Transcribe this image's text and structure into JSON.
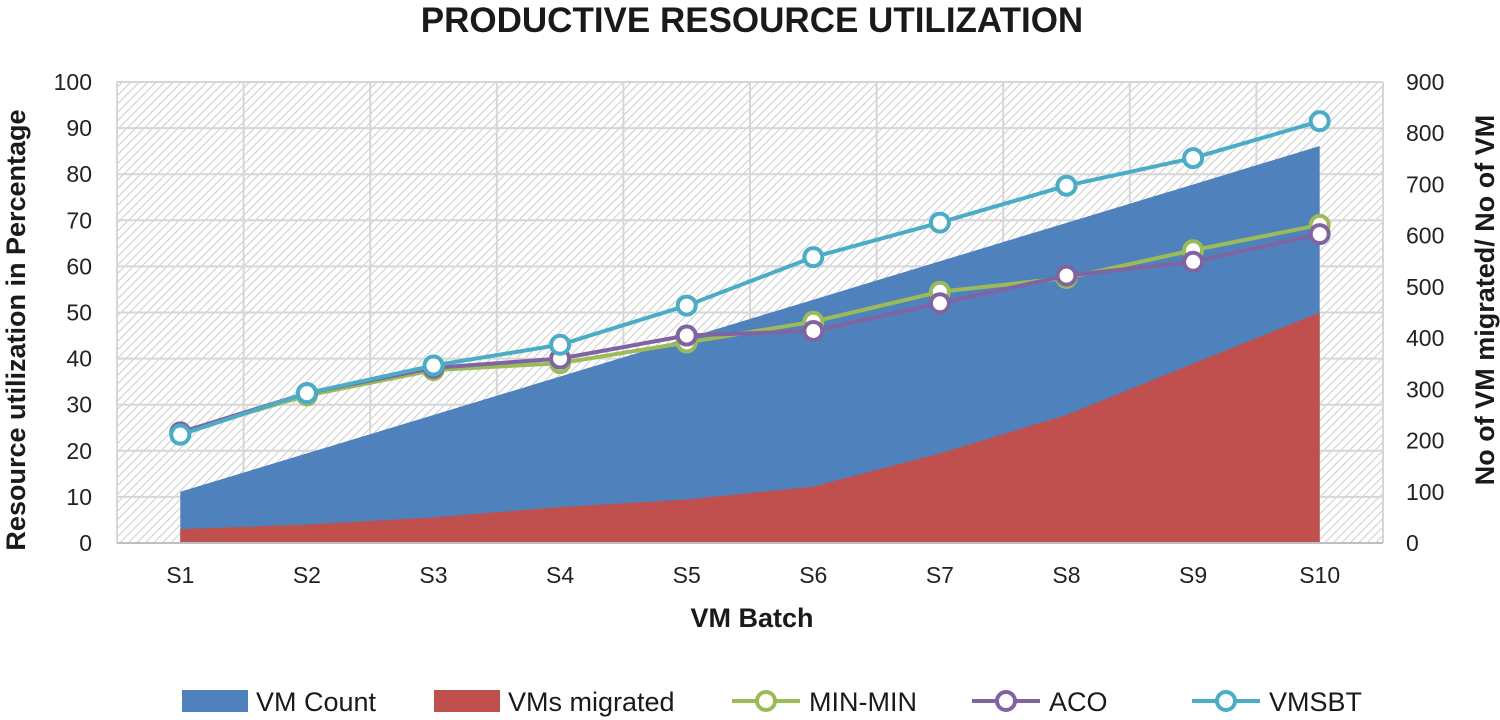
{
  "chart_data": {
    "type": "area+line",
    "title": "PRODUCTIVE RESOURCE UTILIZATION",
    "xlabel": "VM Batch",
    "ylabel_left": "Resource utilization in Percentage",
    "ylabel_right": "No of VM migrated/ No of VM",
    "categories": [
      "S1",
      "S2",
      "S3",
      "S4",
      "S5",
      "S6",
      "S7",
      "S8",
      "S9",
      "S10"
    ],
    "ylim_left": [
      0,
      100
    ],
    "yticks_left": [
      "0",
      "10",
      "20",
      "30",
      "40",
      "50",
      "60",
      "70",
      "80",
      "90",
      "100"
    ],
    "ylim_right": [
      0,
      900
    ],
    "yticks_right": [
      "0",
      "100",
      "200",
      "300",
      "400",
      "500",
      "600",
      "700",
      "800",
      "900"
    ],
    "grid": true,
    "legend_position": "bottom",
    "area_series": [
      {
        "name": "VM Count",
        "axis": "right",
        "color": "#4f81bd",
        "values": [
          100,
          175,
          250,
          325,
          400,
          475,
          550,
          625,
          700,
          775
        ]
      },
      {
        "name": "VMs migrated",
        "axis": "right",
        "color": "#c0504d",
        "values": [
          27,
          36,
          50,
          70,
          85,
          110,
          175,
          250,
          350,
          450
        ]
      }
    ],
    "line_series": [
      {
        "name": "MIN-MIN",
        "axis": "left",
        "color": "#9bbb59",
        "values": [
          24,
          32,
          37.5,
          39,
          43.5,
          48,
          54.5,
          57.5,
          63.5,
          69
        ]
      },
      {
        "name": "ACO",
        "axis": "left",
        "color": "#8064a2",
        "values": [
          24,
          32.5,
          38,
          40,
          45,
          46,
          52,
          58,
          61,
          67
        ]
      },
      {
        "name": "VMSBT",
        "axis": "left",
        "color": "#4bacc6",
        "values": [
          23.5,
          32.5,
          38.5,
          43,
          51.5,
          62,
          69.5,
          77.5,
          83.5,
          91.5
        ]
      }
    ]
  }
}
